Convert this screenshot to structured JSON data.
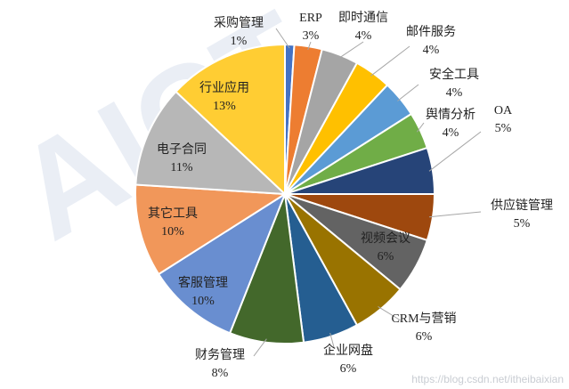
{
  "chart_data": {
    "type": "pie",
    "title": "",
    "slices": [
      {
        "label": "采购管理",
        "percent_label": "1%",
        "value": 1,
        "color": "#4472c4"
      },
      {
        "label": "ERP",
        "percent_label": "3%",
        "value": 3,
        "color": "#ed7d31"
      },
      {
        "label": "即时通信",
        "percent_label": "4%",
        "value": 4,
        "color": "#a5a5a5"
      },
      {
        "label": "邮件服务",
        "percent_label": "4%",
        "value": 4,
        "color": "#ffc000"
      },
      {
        "label": "安全工具",
        "percent_label": "4%",
        "value": 4,
        "color": "#5b9bd5"
      },
      {
        "label": "舆情分析",
        "percent_label": "4%",
        "value": 4,
        "color": "#70ad47"
      },
      {
        "label": "OA",
        "percent_label": "5%",
        "value": 5,
        "color": "#264478"
      },
      {
        "label": "供应链管理",
        "percent_label": "5%",
        "value": 5,
        "color": "#9e480e"
      },
      {
        "label": "视频会议",
        "percent_label": "6%",
        "value": 6,
        "color": "#636363"
      },
      {
        "label": "CRM与营销",
        "percent_label": "6%",
        "value": 6,
        "color": "#997300"
      },
      {
        "label": "企业网盘",
        "percent_label": "6%",
        "value": 6,
        "color": "#255e91"
      },
      {
        "label": "财务管理",
        "percent_label": "8%",
        "value": 8,
        "color": "#43682b"
      },
      {
        "label": "客服管理",
        "percent_label": "10%",
        "value": 10,
        "color": "#698ed0"
      },
      {
        "label": "其它工具",
        "percent_label": "10%",
        "value": 10,
        "color": "#f1975a"
      },
      {
        "label": "电子合同",
        "percent_label": "11%",
        "value": 11,
        "color": "#b7b7b7"
      },
      {
        "label": "行业应用",
        "percent_label": "13%",
        "value": 13,
        "color": "#ffcd33"
      }
    ]
  },
  "watermark": {
    "brand": "AICT",
    "url": "https://blog.csdn.net/itheibaixian"
  }
}
